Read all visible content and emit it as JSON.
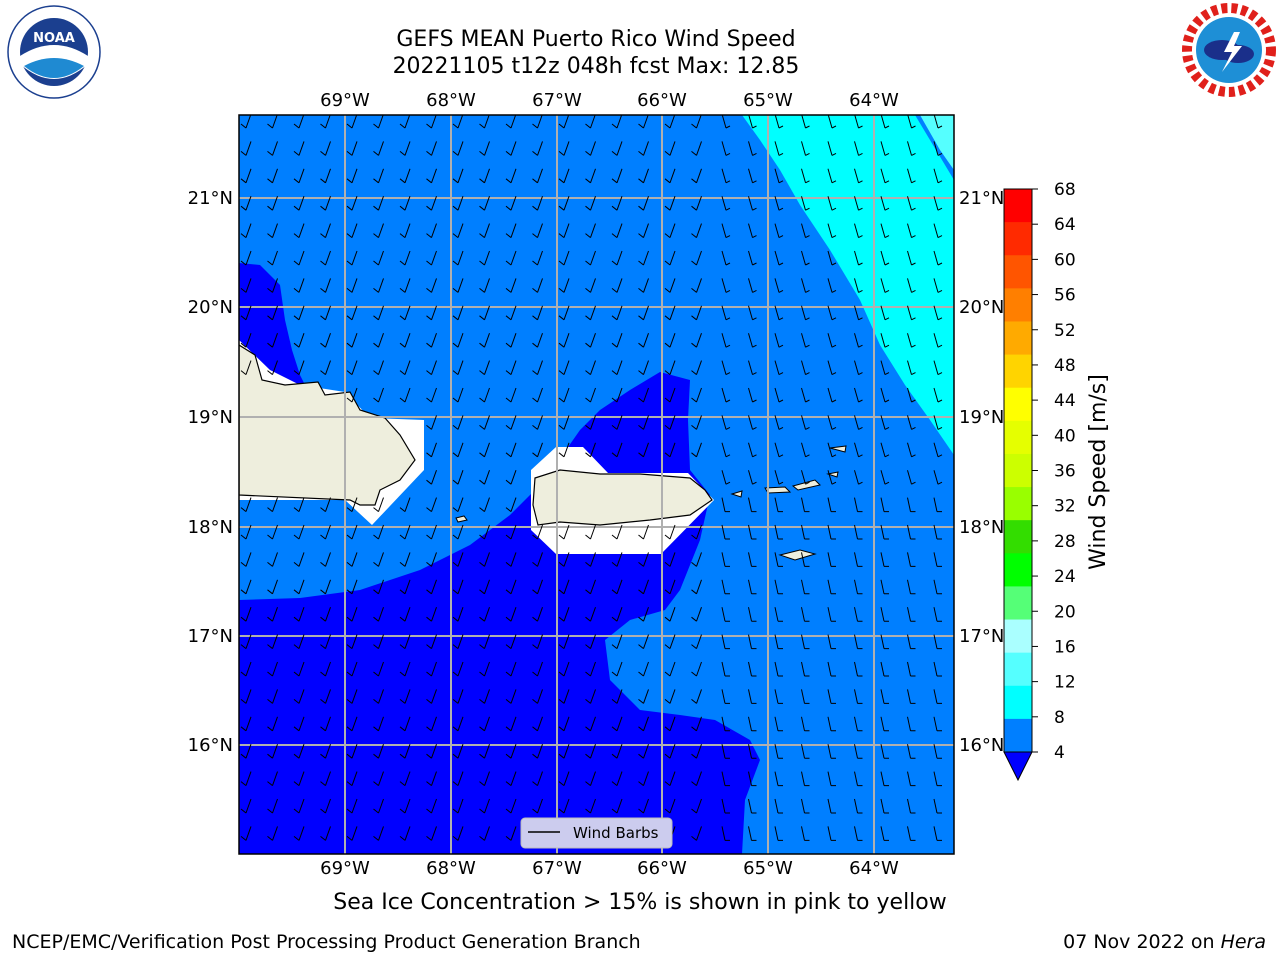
{
  "header": {
    "title": "GEFS MEAN Puerto Rico Wind Speed",
    "subtitle": "20221105 t12z 048h fcst   Max: 12.85"
  },
  "logos": {
    "left": {
      "name": "NOAA",
      "arc_text": "NATIONAL OCEANIC AND ATMOSPHERIC ADMINISTRATION",
      "bottom_text": "U.S. DEPARTMENT OF COMMERCE"
    },
    "right": {
      "arc_text": "NATIONAL WEATHER SERVICE"
    }
  },
  "map": {
    "lon_labels": [
      "69°W",
      "68°W",
      "67°W",
      "66°W",
      "65°W",
      "64°W"
    ],
    "lat_labels": [
      "21°N",
      "20°N",
      "19°N",
      "18°N",
      "17°N",
      "16°N"
    ],
    "legend_label": "Wind Barbs",
    "fill_colors": {
      "band_4_8_dark": "#0000ff",
      "band_4_8": "#007fff",
      "band_8_12": "#00ffff",
      "land": "#eeeedd"
    }
  },
  "colorbar": {
    "label": "Wind Speed [m/s]",
    "ticks": [
      "68",
      "64",
      "60",
      "56",
      "52",
      "48",
      "44",
      "40",
      "36",
      "32",
      "28",
      "24",
      "20",
      "16",
      "12",
      "8",
      "4"
    ],
    "colors": [
      "#ff0000",
      "#ff2a00",
      "#ff5500",
      "#ff7f00",
      "#ffaa00",
      "#ffd400",
      "#ffff00",
      "#e5ff00",
      "#ccff00",
      "#99ff00",
      "#33dd00",
      "#00ff00",
      "#55ff77",
      "#aaffff",
      "#55ffff",
      "#00ffff",
      "#007fff"
    ],
    "extend_color": "#0000ff"
  },
  "note": "Sea Ice Concentration > 15% is shown in pink to yellow",
  "footer": {
    "left": "NCEP/EMC/Verification Post Processing Product Generation Branch",
    "right_prefix": "07 Nov 2022 on",
    "right_host": "Hera"
  }
}
